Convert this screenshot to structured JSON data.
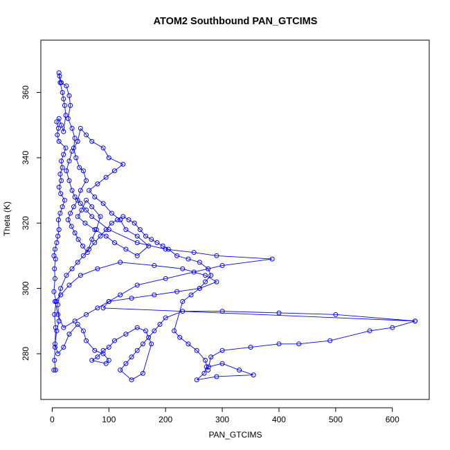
{
  "chart_data": {
    "type": "scatter",
    "title": "ATOM2 Southbound PAN_GTCIMS",
    "xlabel": "PAN_GTCIMS",
    "ylabel": "Theta (K)",
    "xlim": [
      -20,
      665
    ],
    "ylim": [
      266,
      376
    ],
    "xticks": [
      0,
      100,
      200,
      300,
      400,
      500,
      600
    ],
    "yticks": [
      280,
      300,
      320,
      340,
      360
    ],
    "xtick_labels": [
      "0",
      "100",
      "200",
      "300",
      "400",
      "500",
      "600"
    ],
    "ytick_labels": [
      "280",
      "300",
      "320",
      "340",
      "360"
    ],
    "connect_points": true,
    "grid": false,
    "series_color": "#0000ff",
    "series": [
      {
        "points": [
          [
            3,
            275
          ],
          [
            6,
            275
          ],
          [
            4,
            278
          ],
          [
            5,
            282
          ],
          [
            6,
            288
          ],
          [
            4,
            292
          ],
          [
            7,
            296
          ],
          [
            3,
            299
          ],
          [
            5,
            303
          ],
          [
            4,
            306
          ],
          [
            6,
            309
          ],
          [
            3,
            310
          ],
          [
            5,
            312
          ],
          [
            8,
            314
          ],
          [
            10,
            316
          ],
          [
            12,
            318
          ],
          [
            11,
            321
          ],
          [
            14,
            323
          ],
          [
            18,
            325
          ],
          [
            22,
            327
          ],
          [
            15,
            329
          ],
          [
            12,
            331
          ],
          [
            16,
            333
          ],
          [
            14,
            335
          ],
          [
            18,
            337
          ],
          [
            16,
            339
          ],
          [
            20,
            341
          ],
          [
            24,
            343
          ],
          [
            12,
            345
          ],
          [
            9,
            347
          ],
          [
            11,
            349
          ],
          [
            8,
            351
          ],
          [
            12,
            352
          ],
          [
            16,
            350
          ],
          [
            20,
            348
          ],
          [
            24,
            353
          ],
          [
            22,
            356
          ],
          [
            20,
            358
          ],
          [
            18,
            360
          ],
          [
            14,
            363
          ],
          [
            12,
            366
          ],
          [
            13,
            365
          ],
          [
            16,
            363
          ],
          [
            25,
            362
          ],
          [
            30,
            359
          ],
          [
            32,
            356
          ],
          [
            28,
            352
          ],
          [
            35,
            349
          ],
          [
            40,
            346
          ],
          [
            38,
            343
          ],
          [
            42,
            340
          ],
          [
            48,
            337
          ],
          [
            55,
            336
          ],
          [
            60,
            333
          ],
          [
            50,
            330
          ],
          [
            45,
            327
          ],
          [
            38,
            325
          ],
          [
            32,
            323
          ],
          [
            28,
            321
          ],
          [
            34,
            319
          ],
          [
            40,
            317
          ],
          [
            46,
            315
          ],
          [
            54,
            313
          ],
          [
            62,
            311
          ],
          [
            70,
            315
          ],
          [
            78,
            318
          ],
          [
            85,
            322
          ],
          [
            70,
            325
          ],
          [
            60,
            327
          ],
          [
            52,
            324
          ],
          [
            45,
            322
          ],
          [
            58,
            320
          ],
          [
            75,
            318
          ],
          [
            95,
            316
          ],
          [
            110,
            314
          ],
          [
            130,
            312
          ],
          [
            150,
            310
          ],
          [
            170,
            313
          ],
          [
            150,
            316
          ],
          [
            130,
            318
          ],
          [
            120,
            321
          ],
          [
            105,
            323
          ],
          [
            90,
            326
          ],
          [
            75,
            328
          ],
          [
            65,
            330
          ],
          [
            80,
            332
          ],
          [
            95,
            334
          ],
          [
            110,
            336
          ],
          [
            125,
            338
          ],
          [
            100,
            340
          ],
          [
            90,
            343
          ],
          [
            70,
            345
          ],
          [
            60,
            347
          ],
          [
            50,
            349
          ],
          [
            45,
            345
          ],
          [
            35,
            342
          ],
          [
            30,
            339
          ],
          [
            25,
            336
          ],
          [
            30,
            333
          ],
          [
            35,
            330
          ],
          [
            40,
            328
          ],
          [
            50,
            326
          ],
          [
            60,
            324
          ],
          [
            70,
            322
          ],
          [
            100,
            318
          ],
          [
            150,
            314
          ],
          [
            200,
            312
          ],
          [
            250,
            311
          ],
          [
            290,
            310
          ],
          [
            388,
            309
          ],
          [
            300,
            307
          ],
          [
            250,
            305
          ],
          [
            200,
            303
          ],
          [
            150,
            301
          ],
          [
            120,
            298
          ],
          [
            100,
            296
          ],
          [
            80,
            294
          ],
          [
            60,
            292
          ],
          [
            40,
            290
          ],
          [
            20,
            288
          ],
          [
            10,
            292
          ],
          [
            5,
            296
          ],
          [
            15,
            298
          ],
          [
            30,
            301
          ],
          [
            50,
            304
          ],
          [
            80,
            306
          ],
          [
            120,
            308
          ],
          [
            180,
            307
          ],
          [
            230,
            306
          ],
          [
            270,
            304
          ],
          [
            290,
            302
          ],
          [
            260,
            300
          ],
          [
            220,
            299
          ],
          [
            180,
            298
          ],
          [
            140,
            297
          ],
          [
            100,
            296
          ],
          [
            90,
            294
          ],
          [
            640,
            290
          ],
          [
            500,
            292
          ],
          [
            400,
            292.5
          ],
          [
            300,
            293
          ],
          [
            230,
            293
          ],
          [
            200,
            291
          ],
          [
            190,
            289
          ],
          [
            180,
            287
          ],
          [
            170,
            285
          ],
          [
            160,
            283
          ],
          [
            150,
            281
          ],
          [
            140,
            279
          ],
          [
            130,
            277
          ],
          [
            120,
            275
          ],
          [
            140,
            272
          ],
          [
            160,
            274
          ],
          [
            175,
            283
          ],
          [
            165,
            287
          ],
          [
            150,
            288
          ],
          [
            130,
            286
          ],
          [
            110,
            284
          ],
          [
            100,
            282
          ],
          [
            90,
            281
          ],
          [
            80,
            279
          ],
          [
            70,
            278
          ],
          [
            95,
            277
          ],
          [
            100,
            278
          ],
          [
            90,
            280
          ],
          [
            75,
            281
          ],
          [
            60,
            284
          ],
          [
            55,
            287
          ],
          [
            45,
            289
          ],
          [
            30,
            286
          ],
          [
            20,
            282
          ],
          [
            10,
            280
          ],
          [
            5,
            283
          ],
          [
            8,
            287
          ],
          [
            12,
            290
          ],
          [
            10,
            295
          ],
          [
            15,
            300
          ],
          [
            25,
            304
          ],
          [
            35,
            306
          ],
          [
            45,
            308
          ],
          [
            55,
            310
          ],
          [
            65,
            312
          ],
          [
            75,
            314
          ],
          [
            85,
            316
          ],
          [
            95,
            318
          ],
          [
            105,
            320
          ],
          [
            115,
            321
          ],
          [
            125,
            322
          ],
          [
            135,
            321
          ],
          [
            145,
            320
          ],
          [
            155,
            318
          ],
          [
            165,
            316
          ],
          [
            175,
            315
          ],
          [
            185,
            314
          ],
          [
            195,
            313
          ],
          [
            205,
            312
          ],
          [
            220,
            310
          ],
          [
            240,
            309
          ],
          [
            260,
            308
          ],
          [
            275,
            306
          ],
          [
            280,
            304
          ],
          [
            270,
            302
          ],
          [
            260,
            300
          ],
          [
            245,
            298
          ],
          [
            230,
            296
          ],
          [
            215,
            287
          ],
          [
            225,
            285
          ],
          [
            240,
            283
          ],
          [
            255,
            281
          ],
          [
            270,
            278
          ],
          [
            275,
            275
          ],
          [
            272,
            276
          ],
          [
            268,
            274
          ],
          [
            255,
            272
          ],
          [
            290,
            273
          ],
          [
            355,
            273.5
          ],
          [
            330,
            275
          ],
          [
            300,
            277
          ],
          [
            276,
            276
          ],
          [
            280,
            279
          ],
          [
            300,
            281
          ],
          [
            350,
            282
          ],
          [
            400,
            283
          ],
          [
            435,
            283
          ],
          [
            490,
            284
          ],
          [
            560,
            287
          ],
          [
            600,
            288
          ],
          [
            640,
            290
          ]
        ]
      }
    ]
  }
}
